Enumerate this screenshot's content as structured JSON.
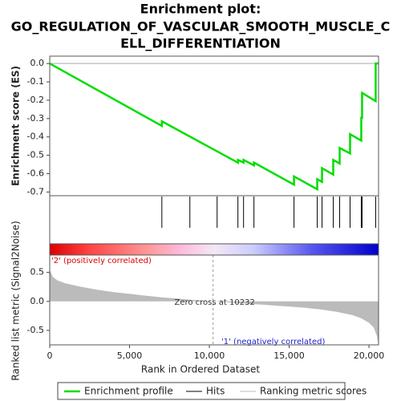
{
  "chart_data": {
    "type": "gsea",
    "title": [
      "Enrichment plot:",
      "GO_REGULATION_OF_VASCULAR_SMOOTH_MUSCLE_C",
      "ELL_DIFFERENTIATION"
    ],
    "xlabel": "Rank in Ordered Dataset",
    "ylabel_top": "Enrichment score (ES)",
    "ylabel_bottom": "Ranked list metric (Signal2Noise)",
    "xlim": [
      0,
      20600
    ],
    "xticks": [
      0,
      {
        "value": 5000,
        "label": "5,000"
      },
      {
        "value": 10000,
        "label": "10,000"
      },
      {
        "value": 15000,
        "label": "15,000"
      },
      {
        "value": 20000,
        "label": "20,000"
      }
    ],
    "ylim": [
      -0.72,
      0.04
    ],
    "yticks": [
      {
        "value": 0,
        "label": "0.0"
      },
      -0.1,
      -0.2,
      -0.3,
      -0.4,
      -0.5,
      -0.6,
      -0.7
    ],
    "es": {
      "name": "Enrichment profile",
      "color": "#00dd00",
      "x": [
        0,
        7025,
        7025,
        11791,
        11791,
        12143,
        12143,
        12795,
        12795,
        15304,
        15304,
        16759,
        16759,
        17060,
        17060,
        17762,
        17762,
        18164,
        18164,
        18816,
        18816,
        19518,
        19518,
        19568,
        19568,
        20421,
        20421,
        20600
      ],
      "values": [
        0,
        -0.34,
        -0.315,
        -0.54,
        -0.525,
        -0.54,
        -0.525,
        -0.555,
        -0.54,
        -0.66,
        -0.615,
        -0.685,
        -0.63,
        -0.645,
        -0.57,
        -0.605,
        -0.525,
        -0.545,
        -0.46,
        -0.49,
        -0.385,
        -0.42,
        -0.295,
        -0.295,
        -0.16,
        -0.205,
        0.0,
        0.0
      ]
    },
    "hits": {
      "name": "Hits",
      "color": "#000000",
      "x": [
        7025,
        8780,
        10487,
        11791,
        12143,
        12795,
        15304,
        16759,
        17060,
        17762,
        18164,
        18816,
        19518,
        19568,
        20421
      ]
    },
    "metric": {
      "name": "Ranking metric scores",
      "color": "#bbbbbb",
      "ylim": [
        -0.75,
        0.8
      ],
      "yticks": [
        0.5,
        {
          "value": 0,
          "label": "0.0"
        },
        -0.5
      ],
      "x": [
        0,
        200,
        500,
        1000,
        2000,
        3000,
        4000,
        5000,
        6000,
        7000,
        8000,
        9000,
        10232,
        12000,
        14000,
        15000,
        16000,
        17000,
        18000,
        19000,
        19500,
        20000,
        20300,
        20500,
        20600
      ],
      "values": [
        0.55,
        0.42,
        0.36,
        0.31,
        0.25,
        0.2,
        0.16,
        0.13,
        0.1,
        0.07,
        0.05,
        0.025,
        0,
        -0.03,
        -0.07,
        -0.09,
        -0.11,
        -0.14,
        -0.18,
        -0.24,
        -0.29,
        -0.37,
        -0.45,
        -0.6,
        -0.75
      ]
    },
    "zero_cross": 10232,
    "zero_cross_label": "Zero cross at 10232",
    "pos_label": "'2' (positively correlated)",
    "neg_label": "'1' (negatively correlated)"
  }
}
